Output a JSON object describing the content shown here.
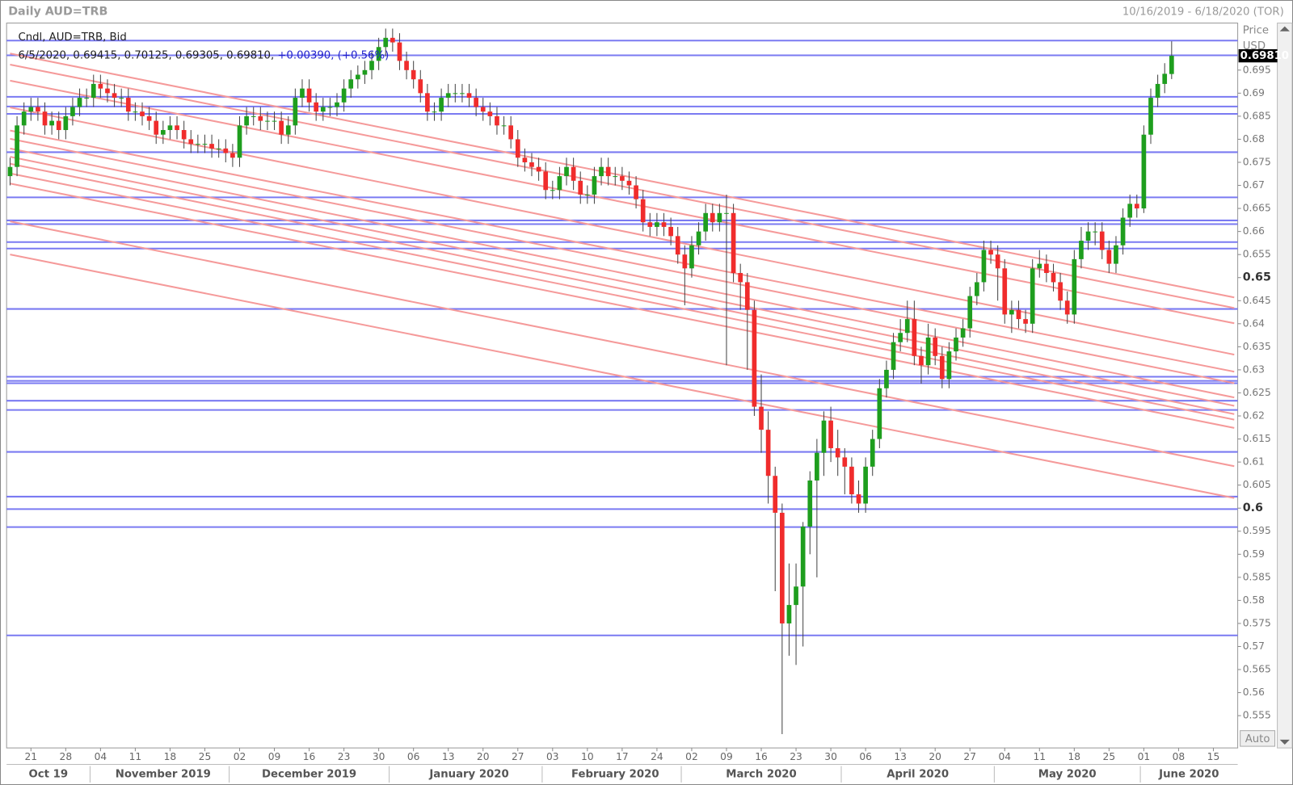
{
  "chart_data": {
    "type": "candlestick",
    "title": "Daily AUD=TRB",
    "date_range": "10/16/2019 - 6/18/2020 (TOR)",
    "legend_line1": "Cndl, AUD=TRB, Bid",
    "legend_line2": "6/5/2020, 0.69415, 0.70125, 0.69305, 0.69810,",
    "legend_change": "+0.00390, (+0.56%)",
    "axis_title": "Price",
    "axis_unit": "USD",
    "last_price_label": "0.69810",
    "auto_button": "Auto",
    "up_color": "#1e9e1e",
    "down_color": "#f02c2c",
    "hline_color": "#7a7af2",
    "trend_color": "#f59a9a",
    "xlim": [
      "2019-10-16",
      "2020-06-18"
    ],
    "ylim": [
      0.548,
      0.7052
    ],
    "yticks": [
      0.555,
      0.56,
      0.565,
      0.57,
      0.575,
      0.58,
      0.585,
      0.59,
      0.595,
      0.6,
      0.605,
      0.61,
      0.615,
      0.62,
      0.625,
      0.63,
      0.635,
      0.64,
      0.645,
      0.65,
      0.655,
      0.66,
      0.665,
      0.67,
      0.675,
      0.68,
      0.685,
      0.69,
      0.695
    ],
    "xticks": [
      {
        "value": "2019-10-21",
        "label": "21"
      },
      {
        "value": "2019-10-28",
        "label": "28"
      },
      {
        "value": "2019-11-04",
        "label": "04"
      },
      {
        "value": "2019-11-11",
        "label": "11"
      },
      {
        "value": "2019-11-18",
        "label": "18"
      },
      {
        "value": "2019-11-25",
        "label": "25"
      },
      {
        "value": "2019-12-02",
        "label": "02"
      },
      {
        "value": "2019-12-09",
        "label": "09"
      },
      {
        "value": "2019-12-16",
        "label": "16"
      },
      {
        "value": "2019-12-23",
        "label": "23"
      },
      {
        "value": "2019-12-30",
        "label": "30"
      },
      {
        "value": "2020-01-06",
        "label": "06"
      },
      {
        "value": "2020-01-13",
        "label": "13"
      },
      {
        "value": "2020-01-20",
        "label": "20"
      },
      {
        "value": "2020-01-27",
        "label": "27"
      },
      {
        "value": "2020-02-03",
        "label": "03"
      },
      {
        "value": "2020-02-10",
        "label": "10"
      },
      {
        "value": "2020-02-17",
        "label": "17"
      },
      {
        "value": "2020-02-24",
        "label": "24"
      },
      {
        "value": "2020-03-02",
        "label": "02"
      },
      {
        "value": "2020-03-09",
        "label": "09"
      },
      {
        "value": "2020-03-16",
        "label": "16"
      },
      {
        "value": "2020-03-23",
        "label": "23"
      },
      {
        "value": "2020-03-30",
        "label": "30"
      },
      {
        "value": "2020-04-06",
        "label": "06"
      },
      {
        "value": "2020-04-13",
        "label": "13"
      },
      {
        "value": "2020-04-20",
        "label": "20"
      },
      {
        "value": "2020-04-27",
        "label": "27"
      },
      {
        "value": "2020-05-04",
        "label": "04"
      },
      {
        "value": "2020-05-11",
        "label": "11"
      },
      {
        "value": "2020-05-18",
        "label": "18"
      },
      {
        "value": "2020-05-25",
        "label": "25"
      },
      {
        "value": "2020-06-01",
        "label": "01"
      },
      {
        "value": "2020-06-08",
        "label": "08"
      },
      {
        "value": "2020-06-15",
        "label": "15"
      }
    ],
    "months": [
      {
        "value": "2019-10",
        "label": "Oct 19"
      },
      {
        "value": "2019-11",
        "label": "November 2019"
      },
      {
        "value": "2019-12",
        "label": "December 2019"
      },
      {
        "value": "2020-01",
        "label": "January 2020"
      },
      {
        "value": "2020-02",
        "label": "February 2020"
      },
      {
        "value": "2020-03",
        "label": "March 2020"
      },
      {
        "value": "2020-04",
        "label": "April 2020"
      },
      {
        "value": "2020-05",
        "label": "May 2020"
      },
      {
        "value": "2020-06",
        "label": "June 2020"
      }
    ],
    "hlines": [
      0.7014,
      0.6982,
      0.6892,
      0.6871,
      0.6855,
      0.6772,
      0.6674,
      0.6624,
      0.6616,
      0.6577,
      0.6563,
      0.6432,
      0.6285,
      0.6276,
      0.6271,
      0.6233,
      0.6213,
      0.6122,
      0.6025,
      0.5998,
      0.5959,
      0.5724
    ],
    "trendlines": [
      {
        "x": [
          "2019-10-16",
          "2020-06-18"
        ],
        "y": [
          0.6986,
          0.6457
        ]
      },
      {
        "x": [
          "2019-10-16",
          "2020-06-18"
        ],
        "y": [
          0.6962,
          0.6434
        ]
      },
      {
        "x": [
          "2019-10-16",
          "2020-06-18"
        ],
        "y": [
          0.6927,
          0.6401
        ]
      },
      {
        "x": [
          "2019-10-16",
          "2020-06-18"
        ],
        "y": [
          0.6869,
          0.6333
        ]
      },
      {
        "x": [
          "2019-10-16",
          "2020-06-18"
        ],
        "y": [
          0.6819,
          0.6296
        ]
      },
      {
        "x": [
          "2019-10-16",
          "2020-06-18"
        ],
        "y": [
          0.6801,
          0.6271
        ]
      },
      {
        "x": [
          "2019-10-16",
          "2020-06-18"
        ],
        "y": [
          0.678,
          0.624
        ]
      },
      {
        "x": [
          "2019-10-16",
          "2020-06-18"
        ],
        "y": [
          0.6762,
          0.6222
        ]
      },
      {
        "x": [
          "2019-10-16",
          "2020-06-18"
        ],
        "y": [
          0.6747,
          0.6204
        ]
      },
      {
        "x": [
          "2019-10-16",
          "2020-06-18"
        ],
        "y": [
          0.6726,
          0.6192
        ]
      },
      {
        "x": [
          "2019-10-16",
          "2020-06-18"
        ],
        "y": [
          0.6704,
          0.6174
        ]
      },
      {
        "x": [
          "2019-10-16",
          "2020-06-18"
        ],
        "y": [
          0.6622,
          0.6091
        ]
      },
      {
        "x": [
          "2019-10-16",
          "2020-06-18"
        ],
        "y": [
          0.655,
          0.6022
        ]
      }
    ],
    "candles": {
      "open": [
        0.672,
        0.674,
        0.683,
        0.686,
        0.687,
        0.686,
        0.683,
        0.684,
        0.682,
        0.685,
        0.687,
        0.689,
        0.689,
        0.692,
        0.691,
        0.69,
        0.689,
        0.689,
        0.686,
        0.686,
        0.685,
        0.684,
        0.681,
        0.682,
        0.683,
        0.682,
        0.68,
        0.679,
        0.679,
        0.679,
        0.678,
        0.678,
        0.677,
        0.676,
        0.683,
        0.685,
        0.685,
        0.684,
        0.684,
        0.684,
        0.681,
        0.683,
        0.689,
        0.691,
        0.688,
        0.686,
        0.687,
        0.687,
        0.688,
        0.691,
        0.693,
        0.694,
        0.695,
        0.697,
        0.7,
        0.702,
        0.701,
        0.697,
        0.695,
        0.693,
        0.69,
        0.686,
        0.686,
        0.689,
        0.69,
        0.69,
        0.69,
        0.689,
        0.687,
        0.686,
        0.685,
        0.683,
        0.683,
        0.68,
        0.676,
        0.675,
        0.674,
        0.673,
        0.669,
        0.669,
        0.672,
        0.674,
        0.671,
        0.668,
        0.668,
        0.672,
        0.674,
        0.672,
        0.672,
        0.671,
        0.67,
        0.667,
        0.662,
        0.661,
        0.662,
        0.661,
        0.659,
        0.655,
        0.652,
        0.657,
        0.66,
        0.664,
        0.662,
        0.664,
        0.664,
        0.651,
        0.649,
        0.643,
        0.622,
        0.617,
        0.607,
        0.599,
        0.575,
        0.579,
        0.583,
        0.596,
        0.606,
        0.612,
        0.619,
        0.613,
        0.611,
        0.609,
        0.603,
        0.601,
        0.609,
        0.615,
        0.626,
        0.63,
        0.636,
        0.638,
        0.641,
        0.633,
        0.631,
        0.637,
        0.633,
        0.628,
        0.634,
        0.637,
        0.639,
        0.646,
        0.649,
        0.656,
        0.655,
        0.652,
        0.642,
        0.643,
        0.641,
        0.64,
        0.652,
        0.653,
        0.651,
        0.649,
        0.645,
        0.642,
        0.654,
        0.658,
        0.66,
        0.66,
        0.656,
        0.653,
        0.657,
        0.663,
        0.666,
        0.665,
        0.681,
        0.689,
        0.692,
        0.69415
      ],
      "high": [
        0.676,
        0.685,
        0.688,
        0.689,
        0.689,
        0.688,
        0.686,
        0.686,
        0.687,
        0.689,
        0.691,
        0.691,
        0.694,
        0.694,
        0.693,
        0.692,
        0.691,
        0.691,
        0.688,
        0.688,
        0.687,
        0.686,
        0.684,
        0.685,
        0.685,
        0.684,
        0.682,
        0.681,
        0.681,
        0.681,
        0.68,
        0.68,
        0.679,
        0.685,
        0.687,
        0.687,
        0.687,
        0.686,
        0.686,
        0.686,
        0.685,
        0.691,
        0.693,
        0.693,
        0.69,
        0.689,
        0.689,
        0.69,
        0.693,
        0.695,
        0.696,
        0.697,
        0.699,
        0.702,
        0.704,
        0.704,
        0.703,
        0.699,
        0.697,
        0.695,
        0.692,
        0.688,
        0.691,
        0.692,
        0.692,
        0.692,
        0.692,
        0.691,
        0.689,
        0.688,
        0.687,
        0.685,
        0.685,
        0.682,
        0.678,
        0.677,
        0.676,
        0.675,
        0.671,
        0.674,
        0.676,
        0.676,
        0.673,
        0.67,
        0.674,
        0.676,
        0.676,
        0.674,
        0.674,
        0.673,
        0.672,
        0.669,
        0.664,
        0.664,
        0.664,
        0.663,
        0.661,
        0.657,
        0.659,
        0.662,
        0.666,
        0.666,
        0.666,
        0.668,
        0.666,
        0.653,
        0.651,
        0.645,
        0.629,
        0.621,
        0.609,
        0.601,
        0.588,
        0.588,
        0.597,
        0.608,
        0.615,
        0.621,
        0.622,
        0.617,
        0.613,
        0.611,
        0.606,
        0.611,
        0.617,
        0.628,
        0.632,
        0.638,
        0.641,
        0.645,
        0.645,
        0.635,
        0.64,
        0.639,
        0.635,
        0.636,
        0.639,
        0.641,
        0.648,
        0.651,
        0.658,
        0.658,
        0.657,
        0.654,
        0.645,
        0.645,
        0.643,
        0.654,
        0.656,
        0.655,
        0.653,
        0.651,
        0.647,
        0.656,
        0.661,
        0.662,
        0.662,
        0.662,
        0.658,
        0.659,
        0.665,
        0.668,
        0.668,
        0.683,
        0.691,
        0.694,
        0.6965,
        0.70125
      ],
      "low": [
        0.67,
        0.672,
        0.681,
        0.684,
        0.684,
        0.681,
        0.681,
        0.68,
        0.68,
        0.683,
        0.685,
        0.687,
        0.687,
        0.689,
        0.688,
        0.687,
        0.687,
        0.684,
        0.684,
        0.683,
        0.682,
        0.679,
        0.679,
        0.68,
        0.68,
        0.678,
        0.677,
        0.677,
        0.677,
        0.676,
        0.676,
        0.675,
        0.674,
        0.674,
        0.681,
        0.683,
        0.682,
        0.682,
        0.682,
        0.679,
        0.679,
        0.681,
        0.687,
        0.686,
        0.684,
        0.684,
        0.685,
        0.685,
        0.686,
        0.689,
        0.691,
        0.692,
        0.693,
        0.695,
        0.698,
        0.699,
        0.695,
        0.693,
        0.691,
        0.688,
        0.684,
        0.684,
        0.684,
        0.687,
        0.688,
        0.688,
        0.687,
        0.685,
        0.684,
        0.683,
        0.681,
        0.681,
        0.678,
        0.674,
        0.673,
        0.672,
        0.671,
        0.667,
        0.667,
        0.667,
        0.67,
        0.669,
        0.666,
        0.666,
        0.666,
        0.67,
        0.67,
        0.67,
        0.669,
        0.668,
        0.665,
        0.66,
        0.659,
        0.659,
        0.659,
        0.657,
        0.653,
        0.644,
        0.65,
        0.655,
        0.658,
        0.66,
        0.66,
        0.631,
        0.649,
        0.643,
        0.63,
        0.62,
        0.612,
        0.601,
        0.582,
        0.551,
        0.568,
        0.566,
        0.57,
        0.59,
        0.585,
        0.607,
        0.61,
        0.607,
        0.603,
        0.601,
        0.599,
        0.599,
        0.607,
        0.613,
        0.624,
        0.628,
        0.634,
        0.636,
        0.631,
        0.627,
        0.629,
        0.631,
        0.626,
        0.626,
        0.632,
        0.635,
        0.637,
        0.644,
        0.647,
        0.653,
        0.645,
        0.64,
        0.638,
        0.639,
        0.638,
        0.638,
        0.65,
        0.649,
        0.647,
        0.643,
        0.64,
        0.64,
        0.652,
        0.656,
        0.657,
        0.654,
        0.651,
        0.651,
        0.655,
        0.661,
        0.663,
        0.664,
        0.679,
        0.687,
        0.69,
        0.69305
      ],
      "close": [
        0.674,
        0.683,
        0.686,
        0.687,
        0.686,
        0.683,
        0.684,
        0.682,
        0.685,
        0.687,
        0.689,
        0.689,
        0.692,
        0.691,
        0.69,
        0.689,
        0.689,
        0.686,
        0.686,
        0.685,
        0.684,
        0.681,
        0.682,
        0.683,
        0.682,
        0.68,
        0.679,
        0.679,
        0.679,
        0.678,
        0.678,
        0.677,
        0.676,
        0.683,
        0.685,
        0.685,
        0.684,
        0.684,
        0.684,
        0.681,
        0.683,
        0.689,
        0.691,
        0.688,
        0.686,
        0.687,
        0.687,
        0.688,
        0.691,
        0.693,
        0.694,
        0.695,
        0.697,
        0.7,
        0.702,
        0.701,
        0.697,
        0.695,
        0.693,
        0.69,
        0.686,
        0.686,
        0.689,
        0.69,
        0.69,
        0.69,
        0.689,
        0.687,
        0.686,
        0.685,
        0.683,
        0.683,
        0.68,
        0.676,
        0.675,
        0.674,
        0.673,
        0.669,
        0.669,
        0.672,
        0.674,
        0.671,
        0.668,
        0.668,
        0.672,
        0.674,
        0.672,
        0.672,
        0.671,
        0.67,
        0.667,
        0.662,
        0.661,
        0.662,
        0.661,
        0.659,
        0.655,
        0.652,
        0.657,
        0.66,
        0.664,
        0.662,
        0.664,
        0.664,
        0.651,
        0.649,
        0.643,
        0.622,
        0.617,
        0.607,
        0.599,
        0.575,
        0.579,
        0.583,
        0.596,
        0.606,
        0.612,
        0.619,
        0.613,
        0.611,
        0.609,
        0.603,
        0.601,
        0.609,
        0.615,
        0.626,
        0.63,
        0.636,
        0.638,
        0.641,
        0.633,
        0.631,
        0.637,
        0.633,
        0.628,
        0.634,
        0.637,
        0.639,
        0.646,
        0.649,
        0.656,
        0.655,
        0.652,
        0.642,
        0.643,
        0.641,
        0.64,
        0.652,
        0.653,
        0.651,
        0.649,
        0.645,
        0.642,
        0.654,
        0.658,
        0.66,
        0.66,
        0.656,
        0.653,
        0.657,
        0.663,
        0.666,
        0.665,
        0.681,
        0.689,
        0.692,
        0.6942,
        0.6981
      ]
    }
  }
}
